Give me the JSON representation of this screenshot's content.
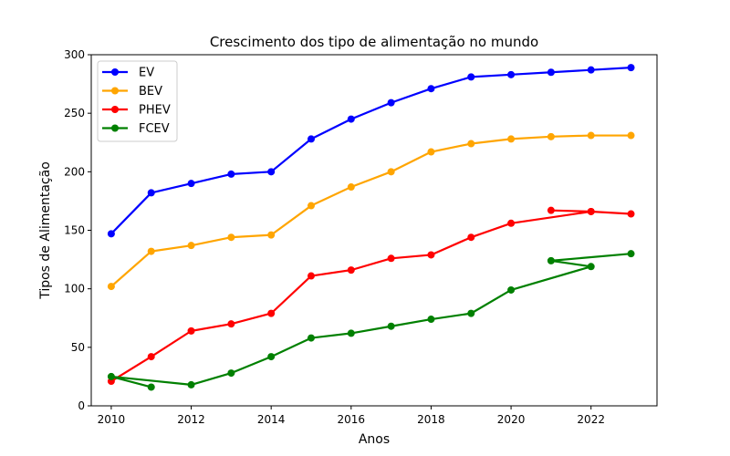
{
  "chart_data": {
    "type": "line",
    "title": "Crescimento dos tipo de alimentação no mundo",
    "xlabel": "Anos",
    "ylabel": "Tipos de Alimentação",
    "xlim": [
      2009.5,
      2023.65
    ],
    "ylim": [
      0,
      300
    ],
    "xticks": [
      2010,
      2012,
      2014,
      2016,
      2018,
      2020,
      2022
    ],
    "yticks": [
      0,
      50,
      100,
      150,
      200,
      250,
      300
    ],
    "grid": false,
    "legend_position": "top-left",
    "series": [
      {
        "name": "EV",
        "color": "#0000ff",
        "x": [
          2010,
          2011,
          2012,
          2013,
          2014,
          2015,
          2016,
          2017,
          2018,
          2019,
          2020,
          2021,
          2022,
          2023
        ],
        "y": [
          147,
          182,
          190,
          198,
          200,
          228,
          245,
          259,
          271,
          281,
          283,
          285,
          287,
          289
        ]
      },
      {
        "name": "BEV",
        "color": "#ffa500",
        "x": [
          2010,
          2011,
          2012,
          2013,
          2014,
          2015,
          2016,
          2017,
          2018,
          2019,
          2020,
          2021,
          2022,
          2023
        ],
        "y": [
          102,
          132,
          137,
          144,
          146,
          171,
          187,
          200,
          217,
          224,
          228,
          230,
          231,
          231
        ]
      },
      {
        "name": "PHEV",
        "color": "#ff0000",
        "x": [
          2010,
          2011,
          2012,
          2013,
          2014,
          2015,
          2016,
          2017,
          2018,
          2019,
          2020,
          2022,
          2021,
          2022,
          2023
        ],
        "y": [
          21,
          42,
          64,
          70,
          79,
          111,
          116,
          126,
          129,
          144,
          156,
          166,
          167,
          166,
          164
        ]
      },
      {
        "name": "FCEV",
        "color": "#008000",
        "x": [
          2011,
          2010,
          2012,
          2013,
          2014,
          2015,
          2016,
          2017,
          2018,
          2019,
          2020,
          2022,
          2021,
          2023
        ],
        "y": [
          16,
          25,
          18,
          28,
          42,
          58,
          62,
          68,
          74,
          79,
          99,
          119,
          124,
          130
        ]
      }
    ]
  }
}
